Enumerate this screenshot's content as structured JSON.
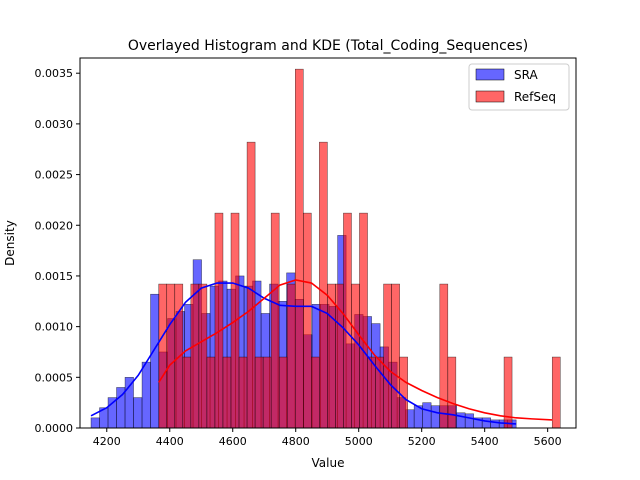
{
  "chart_data": {
    "type": "histogram+kde",
    "title": "Overlayed Histogram and KDE (Total_Coding_Sequences)",
    "xlabel": "Value",
    "ylabel": "Density",
    "xlim": [
      4115,
      5690
    ],
    "ylim": [
      0,
      0.00365
    ],
    "xticks": [
      4200,
      4400,
      4600,
      4800,
      5000,
      5200,
      5400,
      5600
    ],
    "xtick_labels": [
      "4200",
      "4400",
      "4600",
      "4800",
      "5000",
      "5200",
      "5400",
      "5600"
    ],
    "yticks": [
      0,
      0.0005,
      0.001,
      0.0015,
      0.002,
      0.0025,
      0.003,
      0.0035
    ],
    "ytick_labels": [
      "0.0000",
      "0.0005",
      "0.0010",
      "0.0015",
      "0.0020",
      "0.0025",
      "0.0030",
      "0.0035"
    ],
    "grid": false,
    "legend": {
      "position": "top-right",
      "entries": [
        "SRA",
        "RefSeq"
      ]
    },
    "series": [
      {
        "name": "SRA",
        "color": "#0000ff",
        "bin_start": 4150,
        "bin_width": 27,
        "values": [
          0.0001,
          0.0002,
          0.0003,
          0.0004,
          0.0005,
          0.0003,
          0.00065,
          0.00132,
          0.00075,
          0.00108,
          0.00115,
          0.00122,
          0.00166,
          0.00113,
          0.0014,
          0.00145,
          0.00137,
          0.0015,
          0.0014,
          0.00145,
          0.00113,
          0.00142,
          0.00125,
          0.00153,
          0.00127,
          0.00092,
          0.00122,
          0.00122,
          0.0012,
          0.0019,
          0.00083,
          0.00112,
          0.0011,
          0.00103,
          0.0008,
          0.00065,
          0.0003,
          0.00018,
          0.00022,
          0.00025,
          0.00022,
          0.00022,
          0.00022,
          0.00015,
          0.00014,
          0.0001,
          0.0001,
          8e-05,
          8e-05,
          8e-05
        ],
        "kde": {
          "x": [
            4150,
            4200,
            4250,
            4300,
            4350,
            4400,
            4450,
            4500,
            4550,
            4600,
            4650,
            4700,
            4750,
            4800,
            4850,
            4900,
            4950,
            5000,
            5050,
            5100,
            5150,
            5200,
            5250,
            5300,
            5350,
            5400,
            5450,
            5500
          ],
          "y": [
            0.00012,
            0.0002,
            0.00033,
            0.00052,
            0.00077,
            0.00102,
            0.00124,
            0.00138,
            0.00143,
            0.00143,
            0.00138,
            0.00128,
            0.00121,
            0.0012,
            0.0012,
            0.00113,
            0.00099,
            0.00082,
            0.00062,
            0.00043,
            0.00028,
            0.00019,
            0.00015,
            0.00013,
            0.0001,
            7e-05,
            5e-05,
            4e-05
          ]
        }
      },
      {
        "name": "RefSeq",
        "color": "#ff0000",
        "bin_start": 4365,
        "bin_width": 25.5,
        "values": [
          0.00142,
          0.00142,
          0.00142,
          0.0007,
          0.00142,
          0.00142,
          0.0007,
          0.00212,
          0.0007,
          0.00212,
          0.0007,
          0.00282,
          0.0007,
          0.0007,
          0.00212,
          0.0007,
          0.00142,
          0.00354,
          0.00212,
          0.0007,
          0.00282,
          0.00142,
          0.00142,
          0.00212,
          0.00142,
          0.00212,
          0.0007,
          0.0007,
          0.00142,
          0.00142,
          0.0007,
          0,
          0,
          0,
          0,
          0.00142,
          0.0007,
          0,
          0,
          0,
          0,
          0,
          0,
          0.0007,
          0,
          0,
          0,
          0,
          0,
          0.0007
        ],
        "kde": {
          "x": [
            4365,
            4400,
            4450,
            4500,
            4550,
            4600,
            4650,
            4700,
            4750,
            4800,
            4850,
            4900,
            4950,
            5000,
            5050,
            5100,
            5150,
            5200,
            5250,
            5300,
            5350,
            5400,
            5450,
            5500,
            5550,
            5615
          ],
          "y": [
            0.00045,
            0.00062,
            0.00076,
            0.00085,
            0.00094,
            0.00104,
            0.00115,
            0.00128,
            0.00141,
            0.00146,
            0.00143,
            0.00131,
            0.00113,
            0.00092,
            0.00072,
            0.00056,
            0.00045,
            0.00037,
            0.0003,
            0.00024,
            0.00019,
            0.00015,
            0.00012,
            0.0001,
            9e-05,
            8e-05
          ]
        }
      }
    ]
  }
}
